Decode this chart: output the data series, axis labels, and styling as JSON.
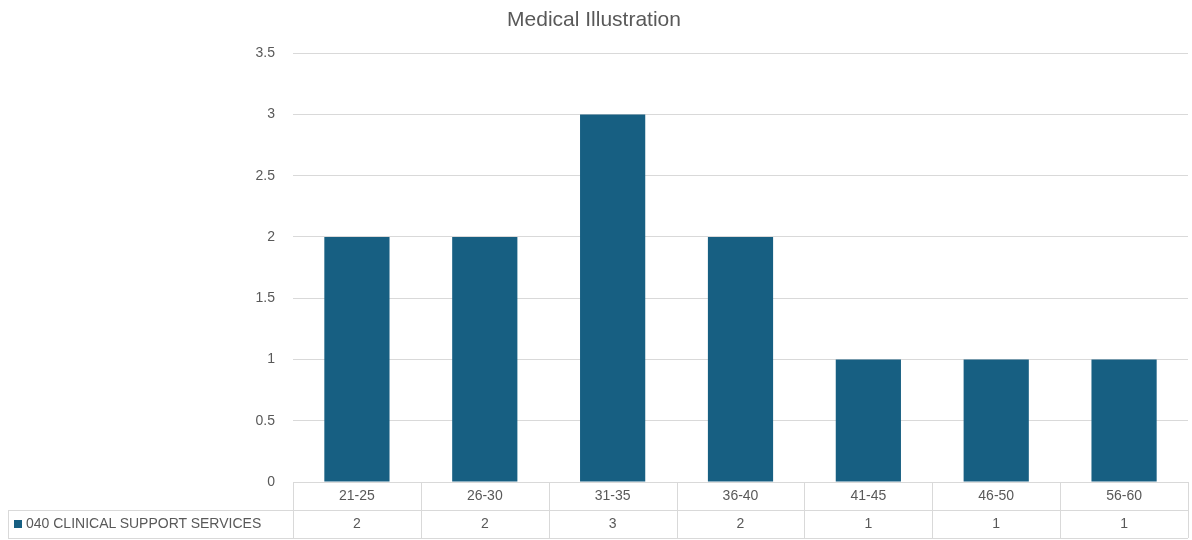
{
  "chart_data": {
    "type": "bar",
    "title": "Medical Illustration",
    "categories": [
      "21-25",
      "26-30",
      "31-35",
      "36-40",
      "41-45",
      "46-50",
      "56-60"
    ],
    "series": [
      {
        "name": "040 CLINICAL SUPPORT SERVICES",
        "color": "#175f82",
        "values": [
          2,
          2,
          3,
          2,
          1,
          1,
          1
        ]
      }
    ],
    "ylim": [
      0,
      3.5
    ],
    "yticks": [
      0,
      0.5,
      1,
      1.5,
      2,
      2.5,
      3,
      3.5
    ],
    "grid": "y",
    "legend": "bottom",
    "data_labels": true
  }
}
